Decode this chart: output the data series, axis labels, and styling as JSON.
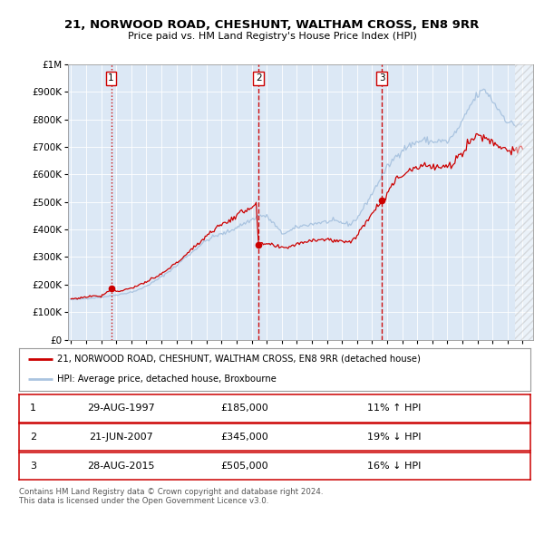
{
  "title": "21, NORWOOD ROAD, CHESHUNT, WALTHAM CROSS, EN8 9RR",
  "subtitle": "Price paid vs. HM Land Registry's House Price Index (HPI)",
  "hpi_color": "#aac4e0",
  "price_color": "#cc0000",
  "bg_color": "#dce8f5",
  "sale_years": [
    1997.664,
    2007.46,
    2015.664
  ],
  "sale_prices": [
    185000,
    345000,
    505000
  ],
  "vline_styles": [
    "dotted",
    "dashed",
    "dashed"
  ],
  "ylim": [
    0,
    1000000
  ],
  "ytick_values": [
    0,
    100000,
    200000,
    300000,
    400000,
    500000,
    600000,
    700000,
    800000,
    900000,
    1000000
  ],
  "ytick_labels": [
    "£0",
    "£100K",
    "£200K",
    "£300K",
    "£400K",
    "£500K",
    "£600K",
    "£700K",
    "£800K",
    "£900K",
    "£1M"
  ],
  "xtick_start": 1995,
  "xtick_end": 2026,
  "xstart": 1994.8,
  "xend": 2025.7,
  "legend_line1": "21, NORWOOD ROAD, CHESHUNT, WALTHAM CROSS, EN8 9RR (detached house)",
  "legend_line2": "HPI: Average price, detached house, Broxbourne",
  "table_rows": [
    [
      "1",
      "29-AUG-1997",
      "£185,000",
      "11% ↑ HPI"
    ],
    [
      "2",
      "21-JUN-2007",
      "£345,000",
      "19% ↓ HPI"
    ],
    [
      "3",
      "28-AUG-2015",
      "£505,000",
      "16% ↓ HPI"
    ]
  ],
  "footer": "Contains HM Land Registry data © Crown copyright and database right 2024.\nThis data is licensed under the Open Government Licence v3.0."
}
